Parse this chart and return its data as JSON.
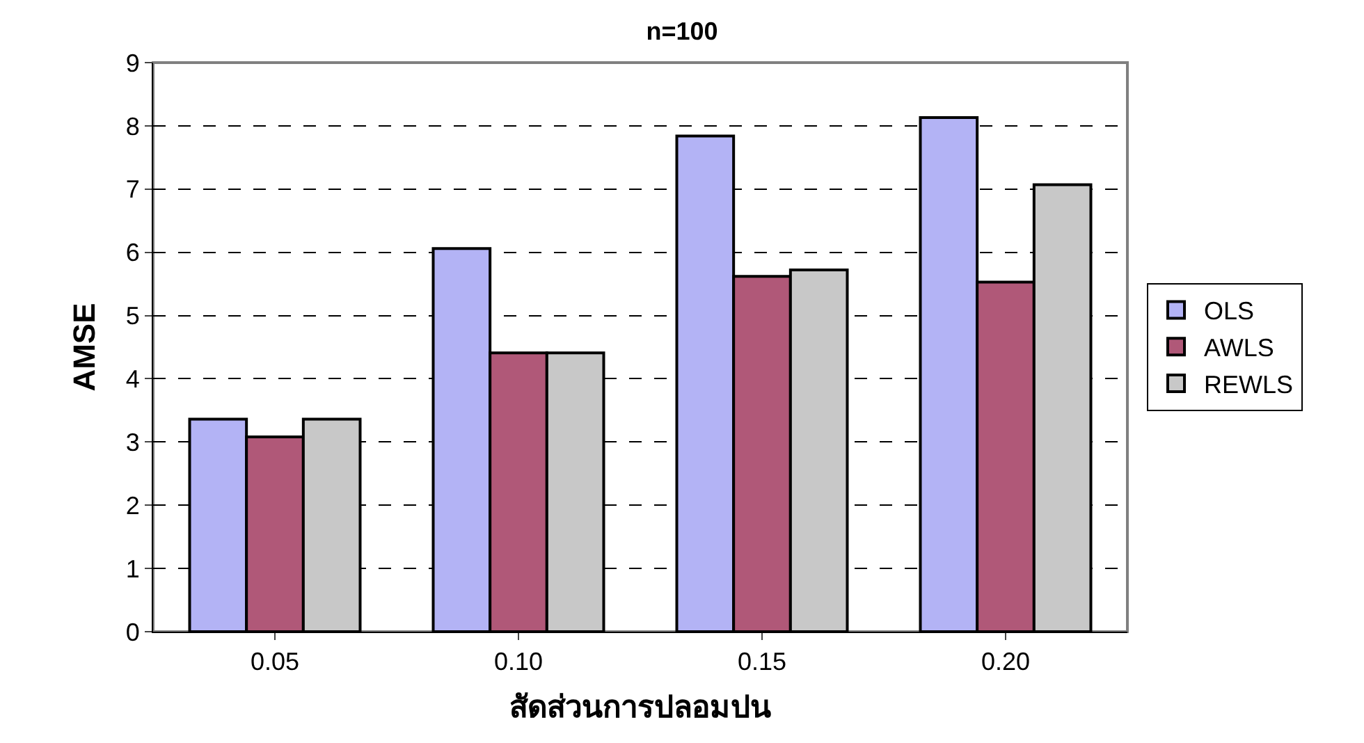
{
  "chart_data": {
    "type": "bar",
    "title": "n=100",
    "xlabel": "สัดส่วนการปลอมปน",
    "ylabel": "AMSE",
    "categories": [
      "0.05",
      "0.10",
      "0.15",
      "0.20"
    ],
    "series": [
      {
        "name": "OLS",
        "color": "#b3b3f5",
        "values": [
          3.36,
          6.06,
          7.84,
          8.13
        ]
      },
      {
        "name": "AWLS",
        "color": "#b05878",
        "values": [
          3.08,
          4.41,
          5.62,
          5.53
        ]
      },
      {
        "name": "REWLS",
        "color": "#c8c8c8",
        "values": [
          3.36,
          4.41,
          5.72,
          7.07
        ]
      }
    ],
    "ylim": [
      0,
      9
    ],
    "yticks": [
      0,
      1,
      2,
      3,
      4,
      5,
      6,
      7,
      8,
      9
    ],
    "grid": "y",
    "legend": "right"
  }
}
